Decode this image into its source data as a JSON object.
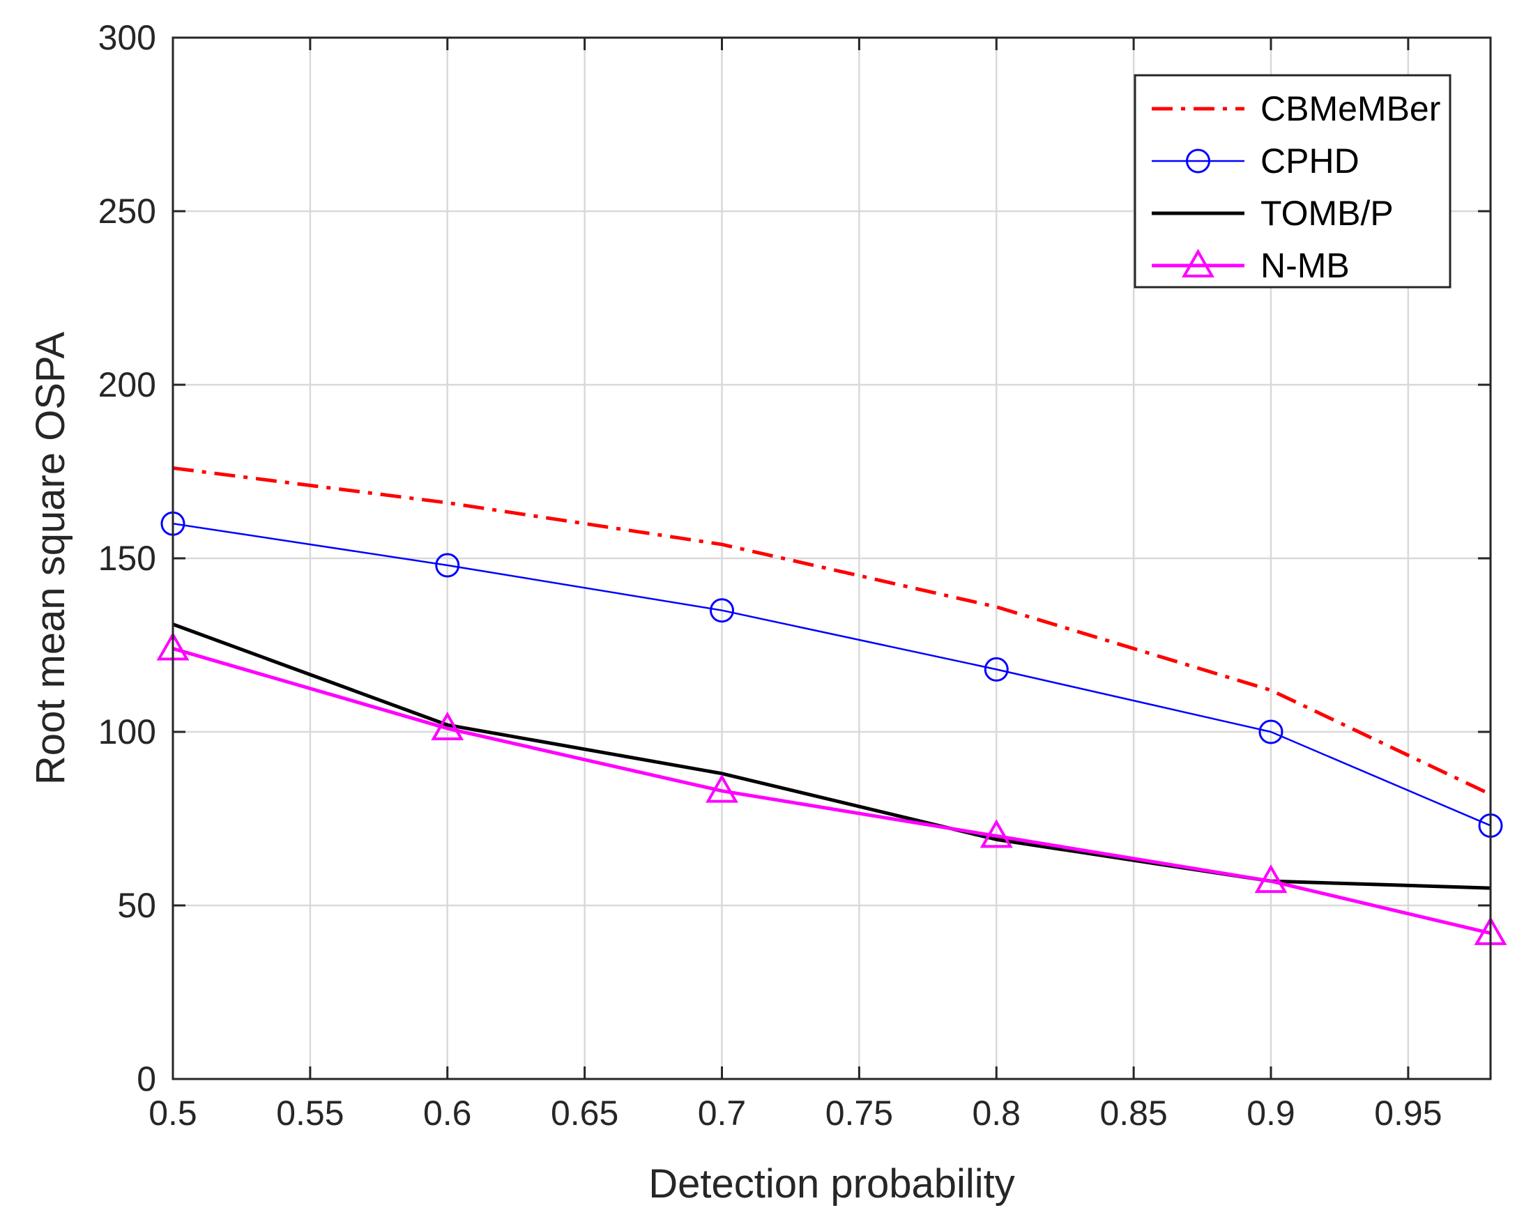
{
  "chart_data": {
    "type": "line",
    "title": "",
    "xlabel": "Detection probability",
    "ylabel": "Root mean square OSPA",
    "xlim": [
      0.5,
      0.98
    ],
    "ylim": [
      0,
      300
    ],
    "xticks": [
      0.5,
      0.55,
      0.6,
      0.65,
      0.7,
      0.75,
      0.8,
      0.85,
      0.9,
      0.95
    ],
    "xtick_labels": [
      "0.5",
      "0.55",
      "0.6",
      "0.65",
      "0.7",
      "0.75",
      "0.8",
      "0.85",
      "0.9",
      "0.95"
    ],
    "yticks": [
      0,
      50,
      100,
      150,
      200,
      250,
      300
    ],
    "ytick_labels": [
      "0",
      "50",
      "100",
      "150",
      "200",
      "250",
      "300"
    ],
    "grid": true,
    "legend_position": "top-right",
    "x": [
      0.5,
      0.6,
      0.7,
      0.8,
      0.9,
      0.98
    ],
    "series": [
      {
        "name": "CBMeMBer",
        "color": "#ff0000",
        "line_style": "dash-dot",
        "marker": "none",
        "values": [
          176,
          166,
          154,
          136,
          112,
          82
        ]
      },
      {
        "name": "CPHD",
        "color": "#0000ff",
        "line_style": "solid",
        "marker": "circle",
        "values": [
          160,
          148,
          135,
          118,
          100,
          73
        ]
      },
      {
        "name": "TOMB/P",
        "color": "#000000",
        "line_style": "solid",
        "marker": "none",
        "values": [
          131,
          102,
          88,
          69,
          57,
          55
        ]
      },
      {
        "name": "N-MB",
        "color": "#ff00ff",
        "line_style": "solid",
        "marker": "triangle",
        "values": [
          124,
          101,
          83,
          70,
          57,
          42
        ]
      }
    ]
  }
}
